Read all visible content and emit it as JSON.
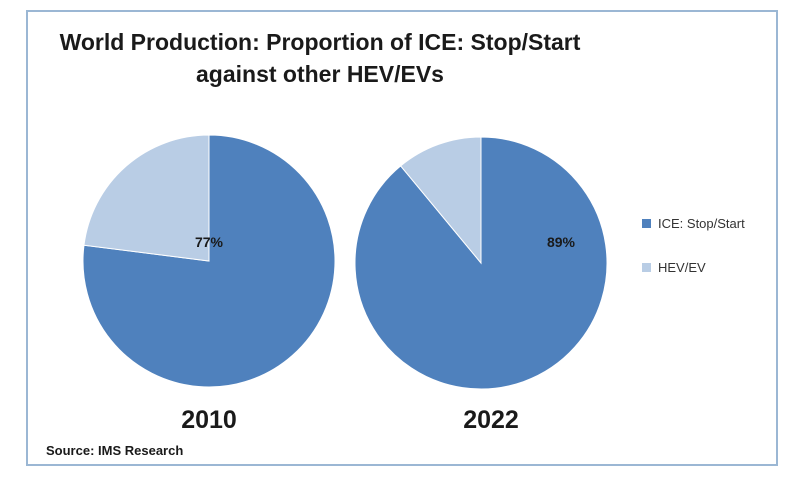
{
  "chart_data": {
    "type": "pie",
    "title_lines": [
      "World Production: Proportion of ICE: Stop/Start",
      "against other HEV/EVs"
    ],
    "legend_position": "right",
    "series_labels": [
      "ICE: Stop/Start",
      "HEV/EV"
    ],
    "colors": [
      "#4f81bd",
      "#b9cde5"
    ],
    "pies": [
      {
        "label": "2010",
        "values": [
          77,
          23
        ],
        "data_label": "77%"
      },
      {
        "label": "2022",
        "values": [
          89,
          11
        ],
        "data_label": "89%"
      }
    ]
  },
  "source": "Source: IMS Research"
}
